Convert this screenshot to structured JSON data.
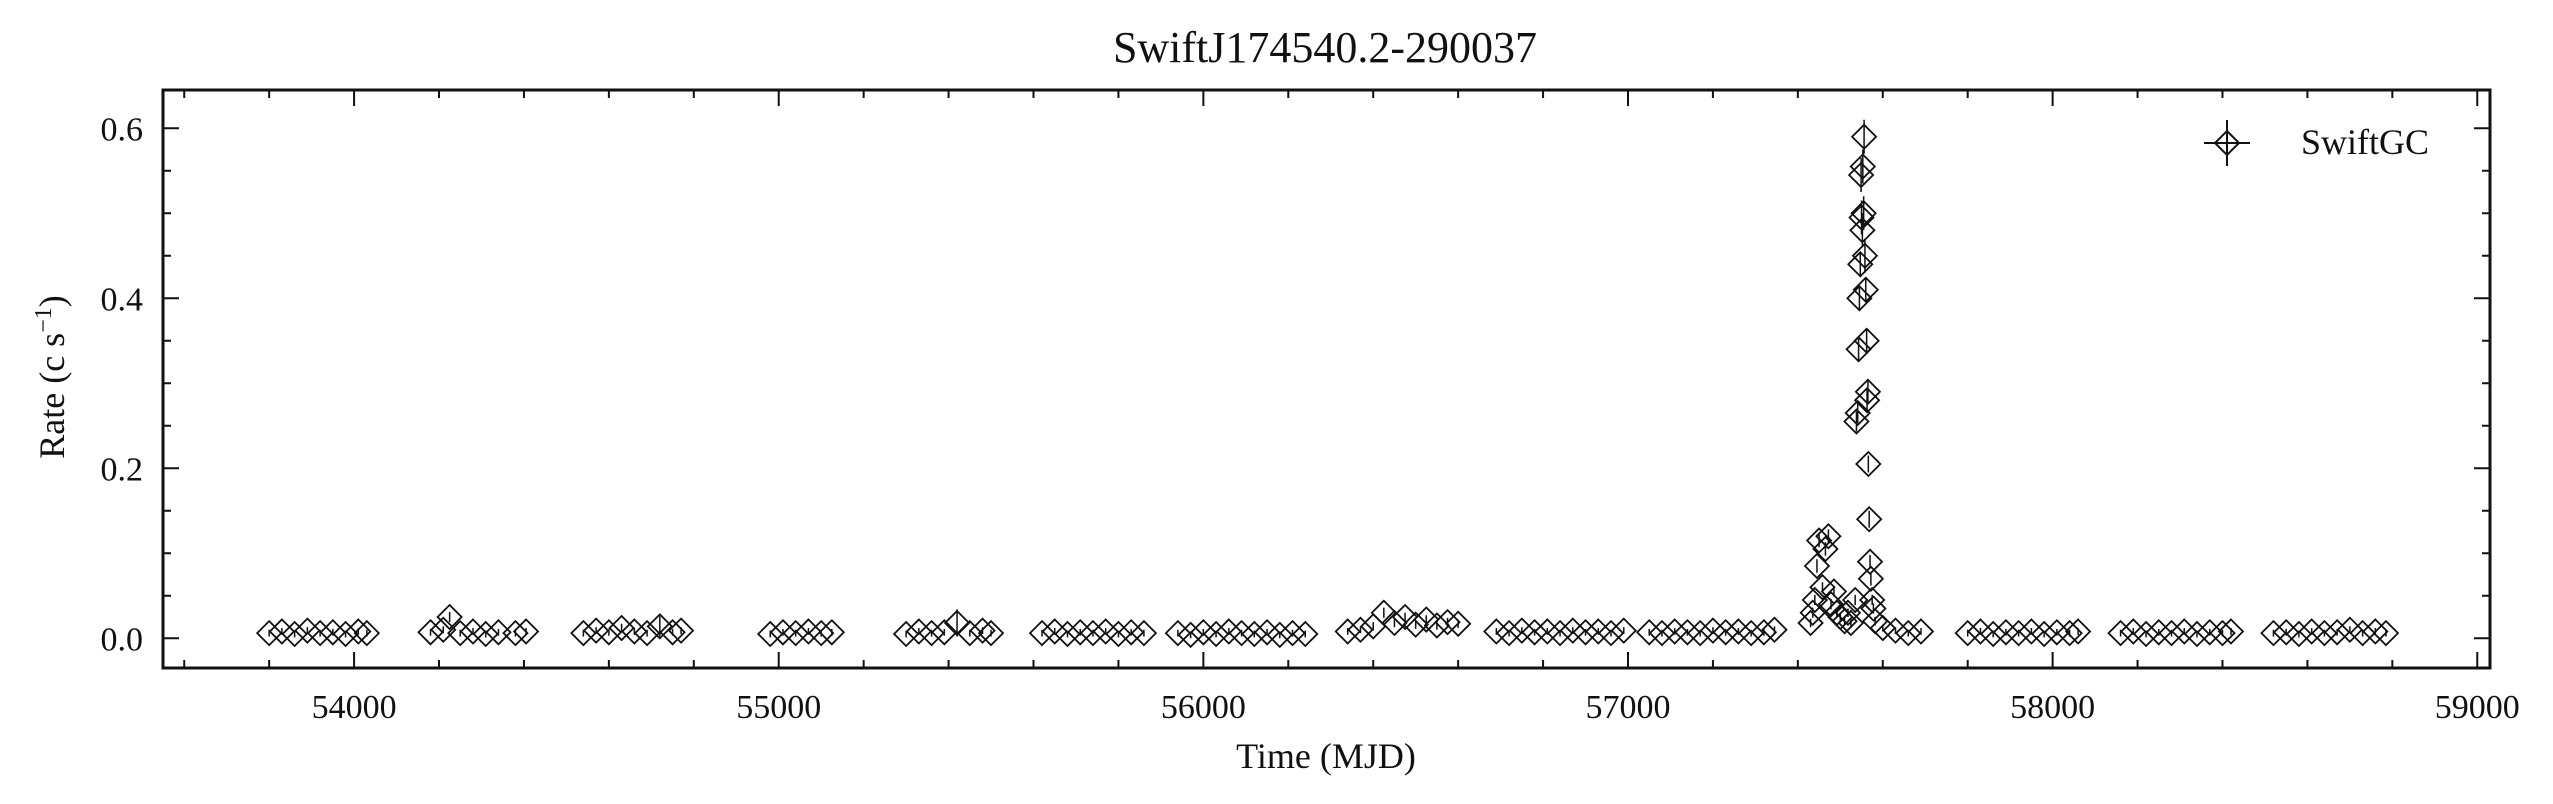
{
  "chart_data": {
    "type": "scatter",
    "title": "SwiftJ174540.2-290037",
    "xlabel": "Time (MJD)",
    "ylabel": {
      "base": "Rate (c s",
      "sup": "−1",
      "close": ")"
    },
    "xlim": [
      53550,
      59030
    ],
    "ylim": [
      -0.035,
      0.645
    ],
    "xticks": [
      54000,
      55000,
      56000,
      57000,
      58000,
      59000
    ],
    "yticks": [
      0.0,
      0.2,
      0.4,
      0.6
    ],
    "ytick_labels": [
      "0.0",
      "0.2",
      "0.4",
      "0.6"
    ],
    "legend": {
      "placement": "top-right",
      "entries": [
        "SwiftGC"
      ]
    },
    "grid": false,
    "marker": "diamond with error bars",
    "color": "#111111",
    "series": [
      {
        "name": "SwiftGC",
        "points": [
          [
            53800,
            0.006,
            0.004
          ],
          [
            53830,
            0.008,
            0.004
          ],
          [
            53860,
            0.005,
            0.004
          ],
          [
            53890,
            0.009,
            0.004
          ],
          [
            53920,
            0.006,
            0.004
          ],
          [
            53950,
            0.007,
            0.004
          ],
          [
            53980,
            0.005,
            0.004
          ],
          [
            54010,
            0.008,
            0.004
          ],
          [
            54030,
            0.006,
            0.004
          ],
          [
            54180,
            0.007,
            0.004
          ],
          [
            54210,
            0.01,
            0.004
          ],
          [
            54225,
            0.025,
            0.006
          ],
          [
            54250,
            0.006,
            0.004
          ],
          [
            54280,
            0.008,
            0.004
          ],
          [
            54310,
            0.005,
            0.004
          ],
          [
            54340,
            0.007,
            0.004
          ],
          [
            54380,
            0.006,
            0.004
          ],
          [
            54405,
            0.008,
            0.004
          ],
          [
            54540,
            0.006,
            0.004
          ],
          [
            54570,
            0.009,
            0.004
          ],
          [
            54600,
            0.007,
            0.004
          ],
          [
            54630,
            0.012,
            0.005
          ],
          [
            54660,
            0.008,
            0.004
          ],
          [
            54690,
            0.006,
            0.004
          ],
          [
            54720,
            0.014,
            0.012
          ],
          [
            54750,
            0.007,
            0.004
          ],
          [
            54770,
            0.009,
            0.004
          ],
          [
            54980,
            0.005,
            0.004
          ],
          [
            55010,
            0.007,
            0.004
          ],
          [
            55040,
            0.006,
            0.004
          ],
          [
            55070,
            0.008,
            0.004
          ],
          [
            55100,
            0.006,
            0.004
          ],
          [
            55125,
            0.007,
            0.004
          ],
          [
            55300,
            0.005,
            0.004
          ],
          [
            55330,
            0.008,
            0.004
          ],
          [
            55360,
            0.006,
            0.004
          ],
          [
            55390,
            0.007,
            0.004
          ],
          [
            55420,
            0.018,
            0.016
          ],
          [
            55450,
            0.006,
            0.004
          ],
          [
            55480,
            0.009,
            0.004
          ],
          [
            55500,
            0.006,
            0.004
          ],
          [
            55620,
            0.006,
            0.004
          ],
          [
            55650,
            0.008,
            0.004
          ],
          [
            55680,
            0.005,
            0.004
          ],
          [
            55710,
            0.007,
            0.004
          ],
          [
            55740,
            0.006,
            0.004
          ],
          [
            55770,
            0.008,
            0.004
          ],
          [
            55800,
            0.005,
            0.004
          ],
          [
            55830,
            0.007,
            0.004
          ],
          [
            55860,
            0.006,
            0.004
          ],
          [
            55940,
            0.006,
            0.004
          ],
          [
            55970,
            0.004,
            0.004
          ],
          [
            56000,
            0.007,
            0.004
          ],
          [
            56030,
            0.005,
            0.004
          ],
          [
            56060,
            0.008,
            0.004
          ],
          [
            56090,
            0.006,
            0.004
          ],
          [
            56120,
            0.005,
            0.004
          ],
          [
            56150,
            0.007,
            0.004
          ],
          [
            56180,
            0.004,
            0.004
          ],
          [
            56210,
            0.006,
            0.004
          ],
          [
            56240,
            0.005,
            0.004
          ],
          [
            56340,
            0.008,
            0.004
          ],
          [
            56370,
            0.01,
            0.004
          ],
          [
            56400,
            0.014,
            0.005
          ],
          [
            56425,
            0.03,
            0.006
          ],
          [
            56450,
            0.018,
            0.005
          ],
          [
            56475,
            0.025,
            0.005
          ],
          [
            56500,
            0.016,
            0.005
          ],
          [
            56525,
            0.022,
            0.005
          ],
          [
            56550,
            0.015,
            0.005
          ],
          [
            56575,
            0.019,
            0.005
          ],
          [
            56600,
            0.017,
            0.005
          ],
          [
            56690,
            0.008,
            0.004
          ],
          [
            56720,
            0.006,
            0.004
          ],
          [
            56750,
            0.009,
            0.004
          ],
          [
            56780,
            0.007,
            0.004
          ],
          [
            56810,
            0.008,
            0.004
          ],
          [
            56840,
            0.006,
            0.004
          ],
          [
            56870,
            0.009,
            0.004
          ],
          [
            56900,
            0.007,
            0.004
          ],
          [
            56930,
            0.008,
            0.004
          ],
          [
            56960,
            0.006,
            0.004
          ],
          [
            56990,
            0.009,
            0.004
          ],
          [
            57050,
            0.007,
            0.004
          ],
          [
            57080,
            0.006,
            0.004
          ],
          [
            57110,
            0.008,
            0.004
          ],
          [
            57140,
            0.007,
            0.004
          ],
          [
            57170,
            0.006,
            0.004
          ],
          [
            57200,
            0.009,
            0.004
          ],
          [
            57230,
            0.007,
            0.004
          ],
          [
            57260,
            0.008,
            0.004
          ],
          [
            57290,
            0.006,
            0.004
          ],
          [
            57320,
            0.007,
            0.004
          ],
          [
            57345,
            0.01,
            0.004
          ],
          [
            57430,
            0.018,
            0.005
          ],
          [
            57435,
            0.03,
            0.006
          ],
          [
            57440,
            0.045,
            0.006
          ],
          [
            57445,
            0.085,
            0.008
          ],
          [
            57450,
            0.115,
            0.008
          ],
          [
            57458,
            0.06,
            0.006
          ],
          [
            57465,
            0.105,
            0.008
          ],
          [
            57472,
            0.12,
            0.008
          ],
          [
            57478,
            0.04,
            0.006
          ],
          [
            57485,
            0.055,
            0.006
          ],
          [
            57492,
            0.03,
            0.005
          ],
          [
            57500,
            0.025,
            0.005
          ],
          [
            57510,
            0.02,
            0.005
          ],
          [
            57518,
            0.03,
            0.005
          ],
          [
            57525,
            0.018,
            0.005
          ],
          [
            57535,
            0.045,
            0.006
          ],
          [
            57538,
            0.255,
            0.012
          ],
          [
            57541,
            0.265,
            0.012
          ],
          [
            57543,
            0.34,
            0.015
          ],
          [
            57545,
            0.4,
            0.015
          ],
          [
            57547,
            0.44,
            0.015
          ],
          [
            57549,
            0.545,
            0.02
          ],
          [
            57550,
            0.495,
            0.02
          ],
          [
            57552,
            0.48,
            0.02
          ],
          [
            57553,
            0.555,
            0.02
          ],
          [
            57555,
            0.5,
            0.02
          ],
          [
            57556,
            0.59,
            0.02
          ],
          [
            57558,
            0.45,
            0.02
          ],
          [
            57560,
            0.41,
            0.015
          ],
          [
            57562,
            0.35,
            0.015
          ],
          [
            57563,
            0.28,
            0.012
          ],
          [
            57565,
            0.29,
            0.012
          ],
          [
            57566,
            0.205,
            0.01
          ],
          [
            57568,
            0.14,
            0.01
          ],
          [
            57570,
            0.09,
            0.008
          ],
          [
            57572,
            0.07,
            0.008
          ],
          [
            57575,
            0.045,
            0.006
          ],
          [
            57578,
            0.035,
            0.006
          ],
          [
            57582,
            0.02,
            0.005
          ],
          [
            57600,
            0.012,
            0.004
          ],
          [
            57630,
            0.009,
            0.004
          ],
          [
            57660,
            0.006,
            0.004
          ],
          [
            57690,
            0.008,
            0.004
          ],
          [
            57800,
            0.006,
            0.004
          ],
          [
            57830,
            0.008,
            0.004
          ],
          [
            57860,
            0.005,
            0.004
          ],
          [
            57890,
            0.007,
            0.004
          ],
          [
            57920,
            0.006,
            0.004
          ],
          [
            57950,
            0.008,
            0.004
          ],
          [
            57980,
            0.005,
            0.004
          ],
          [
            58010,
            0.007,
            0.004
          ],
          [
            58040,
            0.006,
            0.004
          ],
          [
            58060,
            0.008,
            0.004
          ],
          [
            58160,
            0.006,
            0.004
          ],
          [
            58190,
            0.008,
            0.004
          ],
          [
            58220,
            0.005,
            0.004
          ],
          [
            58250,
            0.007,
            0.004
          ],
          [
            58280,
            0.006,
            0.004
          ],
          [
            58310,
            0.008,
            0.004
          ],
          [
            58340,
            0.005,
            0.004
          ],
          [
            58370,
            0.007,
            0.004
          ],
          [
            58400,
            0.006,
            0.004
          ],
          [
            58420,
            0.008,
            0.004
          ],
          [
            58520,
            0.006,
            0.004
          ],
          [
            58550,
            0.007,
            0.004
          ],
          [
            58580,
            0.005,
            0.004
          ],
          [
            58610,
            0.008,
            0.004
          ],
          [
            58640,
            0.006,
            0.004
          ],
          [
            58670,
            0.007,
            0.004
          ],
          [
            58700,
            0.01,
            0.004
          ],
          [
            58730,
            0.006,
            0.004
          ],
          [
            58760,
            0.008,
            0.004
          ],
          [
            58785,
            0.006,
            0.004
          ]
        ]
      }
    ]
  }
}
